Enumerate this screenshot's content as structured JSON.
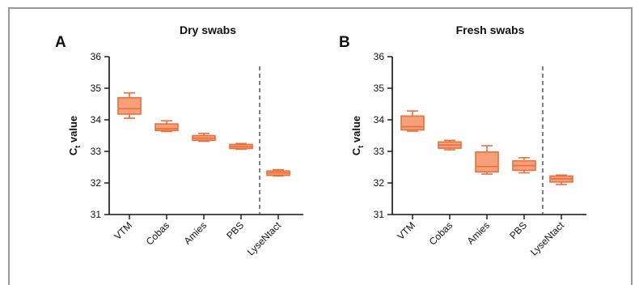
{
  "colors": {
    "box_fill": "#F5A07A",
    "box_stroke": "#E8703C",
    "axis": "#111111",
    "divider": "#555555"
  },
  "chart_data": [
    {
      "type": "box",
      "panel_letter": "A",
      "title": "Dry swabs",
      "ylabel_main": "C",
      "ylabel_sub": "t",
      "ylabel_rest": " value",
      "ylim": [
        31,
        36
      ],
      "yticks": [
        "31",
        "32",
        "33",
        "34",
        "35",
        "36"
      ],
      "categories": [
        "VTM",
        "Cobas",
        "Amies",
        "PBS",
        "LyseNtact"
      ],
      "divider_after_index": 3,
      "boxes": [
        {
          "min": 34.05,
          "q1": 34.18,
          "median": 34.35,
          "q3": 34.7,
          "max": 34.85
        },
        {
          "min": 33.63,
          "q1": 33.66,
          "median": 33.72,
          "q3": 33.87,
          "max": 33.97
        },
        {
          "min": 33.32,
          "q1": 33.35,
          "median": 33.42,
          "q3": 33.5,
          "max": 33.57
        },
        {
          "min": 33.07,
          "q1": 33.09,
          "median": 33.15,
          "q3": 33.22,
          "max": 33.25
        },
        {
          "min": 32.22,
          "q1": 32.24,
          "median": 32.32,
          "q3": 32.38,
          "max": 32.42
        }
      ]
    },
    {
      "type": "box",
      "panel_letter": "B",
      "title": "Fresh swabs",
      "ylabel_main": "C",
      "ylabel_sub": "t",
      "ylabel_rest": " value",
      "ylim": [
        31,
        36
      ],
      "yticks": [
        "31",
        "32",
        "33",
        "34",
        "35",
        "36"
      ],
      "categories": [
        "VTM",
        "Cobas",
        "Amies",
        "PBS",
        "LyseNtact"
      ],
      "divider_after_index": 3,
      "boxes": [
        {
          "min": 33.64,
          "q1": 33.68,
          "median": 33.78,
          "q3": 34.12,
          "max": 34.28
        },
        {
          "min": 33.05,
          "q1": 33.1,
          "median": 33.2,
          "q3": 33.3,
          "max": 33.35
        },
        {
          "min": 32.28,
          "q1": 32.35,
          "median": 32.52,
          "q3": 32.98,
          "max": 33.18
        },
        {
          "min": 32.32,
          "q1": 32.4,
          "median": 32.55,
          "q3": 32.7,
          "max": 32.8
        },
        {
          "min": 31.95,
          "q1": 32.03,
          "median": 32.13,
          "q3": 32.22,
          "max": 32.25
        }
      ]
    }
  ]
}
